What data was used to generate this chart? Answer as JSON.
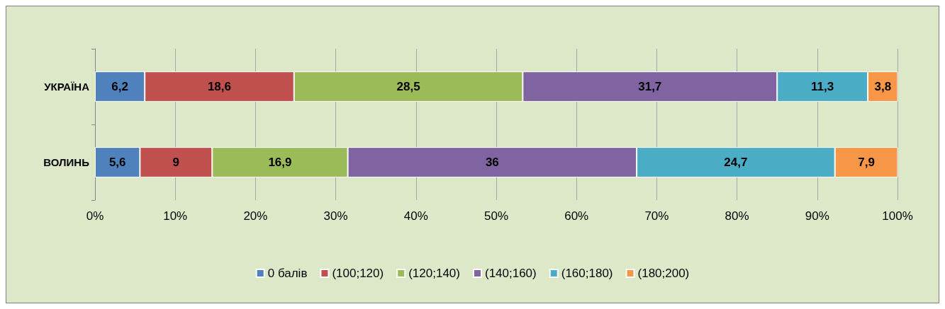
{
  "chart_data": {
    "type": "bar",
    "orientation": "horizontal",
    "stacked": true,
    "categories": [
      "УКРАЇНА",
      "ВОЛИНЬ"
    ],
    "series": [
      {
        "name": "0 балів",
        "color": "#4f81bd",
        "values": [
          6.2,
          5.6
        ],
        "value_labels": [
          "6,2",
          "5,6"
        ]
      },
      {
        "name": "(100;120)",
        "color": "#c0504d",
        "values": [
          18.6,
          9
        ],
        "value_labels": [
          "18,6",
          "9"
        ]
      },
      {
        "name": "(120;140)",
        "color": "#9bbb59",
        "values": [
          28.5,
          16.9
        ],
        "value_labels": [
          "28,5",
          "16,9"
        ]
      },
      {
        "name": "(140;160)",
        "color": "#8064a2",
        "values": [
          31.7,
          36
        ],
        "value_labels": [
          "31,7",
          "36"
        ]
      },
      {
        "name": "(160;180)",
        "color": "#4bacc6",
        "values": [
          11.3,
          24.7
        ],
        "value_labels": [
          "11,3",
          "24,7"
        ]
      },
      {
        "name": "(180;200)",
        "color": "#f79646",
        "values": [
          3.8,
          7.9
        ],
        "value_labels": [
          "3,8",
          "7,9"
        ]
      }
    ],
    "xlim": [
      0,
      100
    ],
    "xticks": [
      {
        "value": 0,
        "label": "0%"
      },
      {
        "value": 10,
        "label": "10%"
      },
      {
        "value": 20,
        "label": "20%"
      },
      {
        "value": 30,
        "label": "30%"
      },
      {
        "value": 40,
        "label": "40%"
      },
      {
        "value": 50,
        "label": "50%"
      },
      {
        "value": 60,
        "label": "60%"
      },
      {
        "value": 70,
        "label": "70%"
      },
      {
        "value": 80,
        "label": "80%"
      },
      {
        "value": 90,
        "label": "90%"
      },
      {
        "value": 100,
        "label": "100%"
      }
    ],
    "grid": "x",
    "legend": "bottom"
  }
}
